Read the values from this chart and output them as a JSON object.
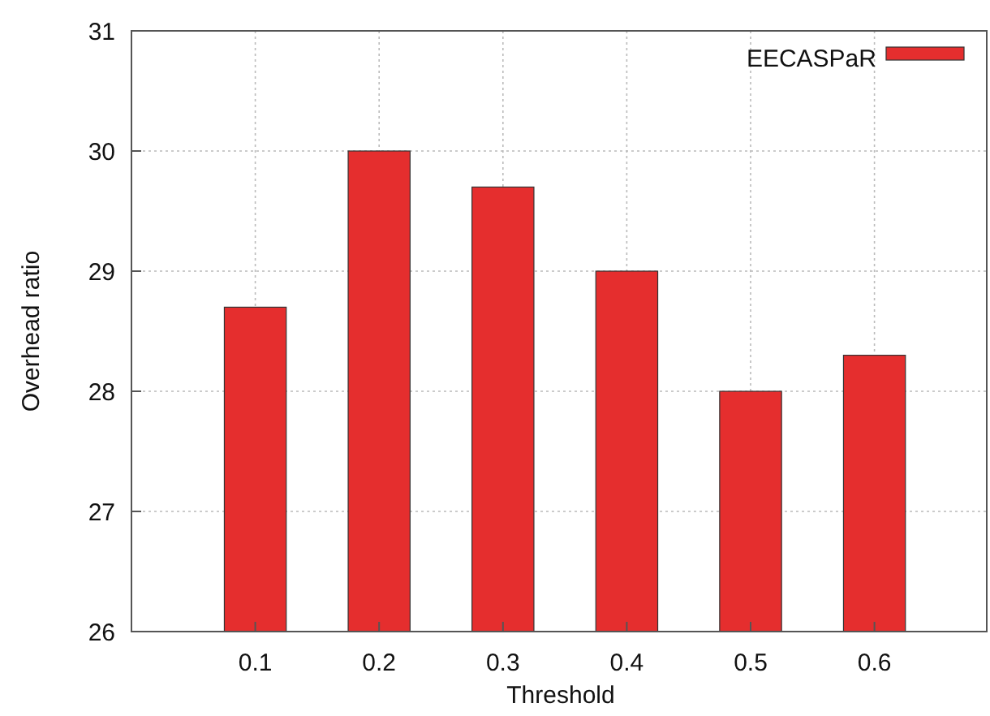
{
  "chart_data": {
    "type": "bar",
    "xlabel": "Threshold",
    "ylabel": "Overhead ratio",
    "categories": [
      "0.1",
      "0.2",
      "0.3",
      "0.4",
      "0.5",
      "0.6"
    ],
    "series": [
      {
        "name": "EECASPaR",
        "color": "#e52e2e",
        "values": [
          28.7,
          30,
          29.7,
          29,
          28,
          28.3
        ]
      }
    ],
    "ylim": [
      26,
      31
    ],
    "yticks": [
      26,
      27,
      28,
      29,
      30,
      31
    ],
    "grid": true,
    "legend": "top right"
  }
}
